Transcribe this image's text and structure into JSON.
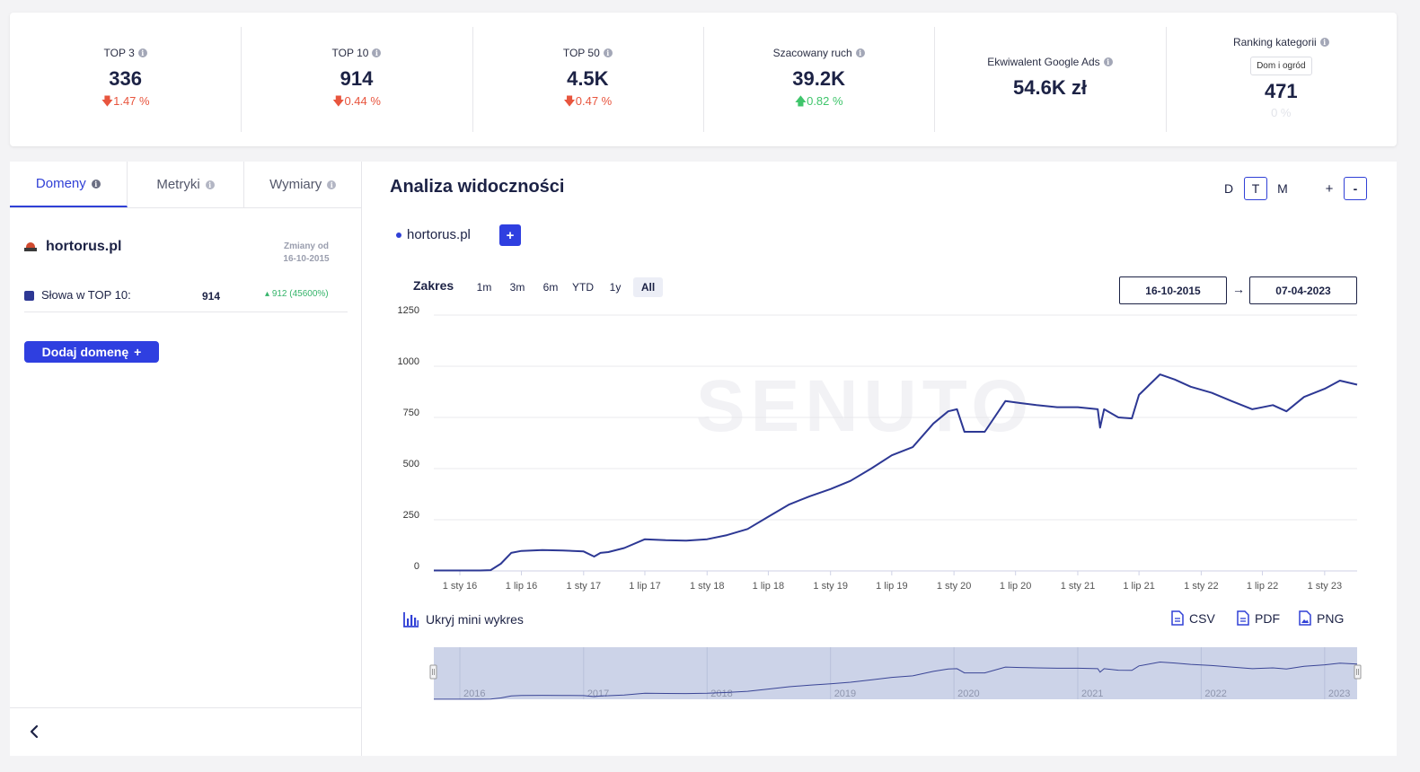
{
  "kpis": [
    {
      "label": "TOP 3",
      "value": "336",
      "change": "1.47 %",
      "direction": "down"
    },
    {
      "label": "TOP 10",
      "value": "914",
      "change": "0.44 %",
      "direction": "down"
    },
    {
      "label": "TOP 50",
      "value": "4.5K",
      "change": "0.47 %",
      "direction": "down"
    },
    {
      "label": "Szacowany ruch",
      "value": "39.2K",
      "change": "0.82 %",
      "direction": "up"
    },
    {
      "label": "Ekwiwalent Google Ads",
      "value": "54.6K zł"
    },
    {
      "label": "Ranking kategorii",
      "category": "Dom i ogród",
      "value": "471",
      "change": "0 %"
    }
  ],
  "left_panel": {
    "tabs": [
      {
        "label": "Domeny",
        "active": true
      },
      {
        "label": "Metryki",
        "active": false
      },
      {
        "label": "Wymiary",
        "active": false
      }
    ],
    "domain": "hortorus.pl",
    "changes_since_label": "Zmiany od",
    "changes_since_date": "16-10-2015",
    "metric_label": "Słowa w TOP 10:",
    "metric_value": "914",
    "metric_change": "912 (45600%)",
    "add_domain_label": "Dodaj domenę",
    "add_domain_icon": "+"
  },
  "main": {
    "title": "Analiza widoczności",
    "granularity": [
      "D",
      "T",
      "M"
    ],
    "granularity_selected": "T",
    "zoom_in": "+",
    "zoom_out": "-",
    "legend_domain": "hortorus.pl",
    "legend_add": "+",
    "range_label": "Zakres",
    "ranges": [
      "1m",
      "3m",
      "6m",
      "YTD",
      "1y",
      "All"
    ],
    "range_selected": "All",
    "date_from": "16-10-2015",
    "date_arrow": "→",
    "date_to": "07-04-2023",
    "watermark": "SENUTO",
    "hide_mini_label": "Ukryj mini wykres",
    "exports": [
      "CSV",
      "PDF",
      "PNG"
    ],
    "accent": "#2f3fe0",
    "line_color": "#2d3894"
  },
  "chart_data": {
    "type": "line",
    "series": [
      {
        "name": "hortorus.pl",
        "color": "#2d3894"
      }
    ],
    "x": [
      "2015-10-16",
      "2016-01-01",
      "2016-03-01",
      "2016-04-01",
      "2016-05-01",
      "2016-06-01",
      "2016-07-01",
      "2016-09-01",
      "2016-11-01",
      "2017-01-01",
      "2017-02-01",
      "2017-02-20",
      "2017-03-15",
      "2017-05-01",
      "2017-07-01",
      "2017-09-01",
      "2017-11-01",
      "2018-01-01",
      "2018-03-01",
      "2018-05-01",
      "2018-07-01",
      "2018-09-01",
      "2018-11-01",
      "2019-01-01",
      "2019-03-01",
      "2019-05-01",
      "2019-07-01",
      "2019-09-01",
      "2019-11-01",
      "2019-12-15",
      "2020-01-10",
      "2020-02-01",
      "2020-04-01",
      "2020-06-01",
      "2020-07-15",
      "2020-09-01",
      "2020-11-01",
      "2021-01-01",
      "2021-03-01",
      "2021-03-08",
      "2021-03-20",
      "2021-05-01",
      "2021-06-10",
      "2021-07-01",
      "2021-09-01",
      "2021-10-15",
      "2021-12-01",
      "2022-02-01",
      "2022-04-01",
      "2022-06-01",
      "2022-08-01",
      "2022-09-10",
      "2022-11-01",
      "2023-01-01",
      "2023-02-15",
      "2023-04-07"
    ],
    "values": [
      2,
      2,
      2,
      4,
      35,
      88,
      98,
      102,
      100,
      95,
      70,
      88,
      92,
      112,
      155,
      150,
      148,
      155,
      175,
      205,
      265,
      325,
      365,
      400,
      440,
      500,
      565,
      605,
      720,
      780,
      790,
      680,
      680,
      830,
      820,
      810,
      800,
      800,
      790,
      700,
      790,
      750,
      745,
      860,
      960,
      935,
      900,
      870,
      830,
      790,
      810,
      780,
      850,
      890,
      930,
      910
    ],
    "xlabel": "",
    "ylabel": "",
    "ylim": [
      0,
      1250
    ],
    "y_ticks": [
      0,
      250,
      500,
      750,
      1000,
      1250
    ],
    "x_tick_dates": [
      "2016-01-01",
      "2016-07-01",
      "2017-01-01",
      "2017-07-01",
      "2018-01-01",
      "2018-07-01",
      "2019-01-01",
      "2019-07-01",
      "2020-01-01",
      "2020-07-01",
      "2021-01-01",
      "2021-07-01",
      "2022-01-01",
      "2022-07-01",
      "2023-01-01"
    ],
    "x_tick_labels": [
      "1 sty 16",
      "1 lip 16",
      "1 sty 17",
      "1 lip 17",
      "1 sty 18",
      "1 lip 18",
      "1 sty 19",
      "1 lip 19",
      "1 sty 20",
      "1 lip 20",
      "1 sty 21",
      "1 lip 21",
      "1 sty 22",
      "1 lip 22",
      "1 sty 23"
    ],
    "navigator_years": [
      "2016",
      "2017",
      "2018",
      "2019",
      "2020",
      "2021",
      "2022",
      "2023"
    ],
    "grid": true,
    "legend": "top-left"
  }
}
